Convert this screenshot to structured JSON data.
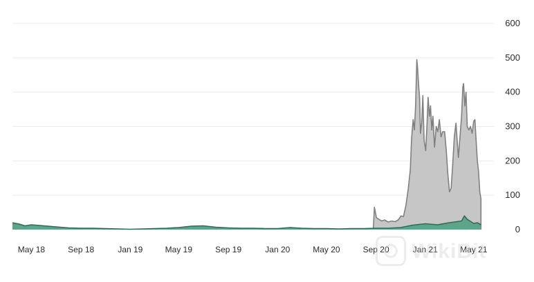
{
  "chart_data": {
    "type": "area",
    "x_ticks": [
      "May 18",
      "Sep 18",
      "Jan 19",
      "May 19",
      "Sep 19",
      "Jan 20",
      "May 20",
      "Sep 20",
      "Jan 21",
      "May 21"
    ],
    "x_tick_dates": [
      "2018-05-01",
      "2018-09-01",
      "2019-01-01",
      "2019-05-01",
      "2019-09-01",
      "2020-01-01",
      "2020-05-01",
      "2020-09-01",
      "2021-01-01",
      "2021-05-01"
    ],
    "x_range": [
      "2018-03-15",
      "2021-06-20"
    ],
    "yticks": [
      0,
      100,
      200,
      300,
      400,
      500,
      600
    ],
    "ylim": [
      0,
      600
    ],
    "y_axis_side": "right",
    "grid": true,
    "series": [
      {
        "color": "#808080",
        "fill": "#c6c6c6",
        "points": [
          [
            "2020-08-25",
            0
          ],
          [
            "2020-08-28",
            65
          ],
          [
            "2020-09-02",
            35
          ],
          [
            "2020-09-08",
            30
          ],
          [
            "2020-09-15",
            25
          ],
          [
            "2020-09-22",
            28
          ],
          [
            "2020-10-01",
            22
          ],
          [
            "2020-10-10",
            25
          ],
          [
            "2020-10-18",
            23
          ],
          [
            "2020-10-26",
            28
          ],
          [
            "2020-11-02",
            40
          ],
          [
            "2020-11-08",
            38
          ],
          [
            "2020-11-14",
            70
          ],
          [
            "2020-11-20",
            120
          ],
          [
            "2020-11-25",
            175
          ],
          [
            "2020-11-28",
            265
          ],
          [
            "2020-12-02",
            320
          ],
          [
            "2020-12-05",
            290
          ],
          [
            "2020-12-08",
            360
          ],
          [
            "2020-12-11",
            495
          ],
          [
            "2020-12-13",
            470
          ],
          [
            "2020-12-15",
            430
          ],
          [
            "2020-12-18",
            380
          ],
          [
            "2020-12-20",
            280
          ],
          [
            "2020-12-23",
            310
          ],
          [
            "2020-12-26",
            390
          ],
          [
            "2020-12-29",
            260
          ],
          [
            "2021-01-02",
            230
          ],
          [
            "2021-01-05",
            300
          ],
          [
            "2021-01-08",
            385
          ],
          [
            "2021-01-11",
            330
          ],
          [
            "2021-01-14",
            360
          ],
          [
            "2021-01-17",
            290
          ],
          [
            "2021-01-20",
            330
          ],
          [
            "2021-01-24",
            240
          ],
          [
            "2021-01-28",
            300
          ],
          [
            "2021-02-01",
            285
          ],
          [
            "2021-02-05",
            320
          ],
          [
            "2021-02-09",
            270
          ],
          [
            "2021-02-13",
            285
          ],
          [
            "2021-02-18",
            285
          ],
          [
            "2021-02-22",
            230
          ],
          [
            "2021-02-26",
            160
          ],
          [
            "2021-03-02",
            110
          ],
          [
            "2021-03-06",
            120
          ],
          [
            "2021-03-10",
            190
          ],
          [
            "2021-03-14",
            270
          ],
          [
            "2021-03-18",
            310
          ],
          [
            "2021-03-21",
            260
          ],
          [
            "2021-03-24",
            210
          ],
          [
            "2021-03-28",
            270
          ],
          [
            "2021-04-01",
            330
          ],
          [
            "2021-04-04",
            415
          ],
          [
            "2021-04-06",
            425
          ],
          [
            "2021-04-09",
            360
          ],
          [
            "2021-04-12",
            400
          ],
          [
            "2021-04-15",
            300
          ],
          [
            "2021-04-19",
            290
          ],
          [
            "2021-04-23",
            300
          ],
          [
            "2021-04-27",
            280
          ],
          [
            "2021-05-01",
            315
          ],
          [
            "2021-05-04",
            320
          ],
          [
            "2021-05-07",
            260
          ],
          [
            "2021-05-10",
            200
          ],
          [
            "2021-05-13",
            170
          ],
          [
            "2021-05-16",
            110
          ],
          [
            "2021-05-19",
            90
          ],
          [
            "2021-05-19",
            0
          ]
        ]
      },
      {
        "color": "#2f6b55",
        "fill": "#5fa48a",
        "points": [
          [
            "2018-03-15",
            20
          ],
          [
            "2018-04-01",
            16
          ],
          [
            "2018-04-15",
            11
          ],
          [
            "2018-05-01",
            14
          ],
          [
            "2018-06-01",
            11
          ],
          [
            "2018-07-01",
            8
          ],
          [
            "2018-08-01",
            5
          ],
          [
            "2018-09-01",
            4
          ],
          [
            "2018-10-01",
            4
          ],
          [
            "2018-11-01",
            3
          ],
          [
            "2018-12-01",
            2
          ],
          [
            "2019-01-01",
            1
          ],
          [
            "2019-02-01",
            2
          ],
          [
            "2019-03-01",
            3
          ],
          [
            "2019-04-01",
            4
          ],
          [
            "2019-05-01",
            6
          ],
          [
            "2019-06-01",
            10
          ],
          [
            "2019-07-01",
            11
          ],
          [
            "2019-08-01",
            7
          ],
          [
            "2019-09-01",
            5
          ],
          [
            "2019-10-01",
            4
          ],
          [
            "2019-11-01",
            4
          ],
          [
            "2019-12-01",
            3
          ],
          [
            "2020-01-01",
            3
          ],
          [
            "2020-02-01",
            6
          ],
          [
            "2020-03-01",
            4
          ],
          [
            "2020-04-01",
            3
          ],
          [
            "2020-05-01",
            3
          ],
          [
            "2020-06-01",
            2
          ],
          [
            "2020-07-01",
            3
          ],
          [
            "2020-08-01",
            3
          ],
          [
            "2020-09-01",
            4
          ],
          [
            "2020-10-01",
            4
          ],
          [
            "2020-11-01",
            6
          ],
          [
            "2020-12-01",
            13
          ],
          [
            "2021-01-01",
            17
          ],
          [
            "2021-02-01",
            14
          ],
          [
            "2021-03-01",
            20
          ],
          [
            "2021-04-01",
            25
          ],
          [
            "2021-04-08",
            40
          ],
          [
            "2021-04-15",
            30
          ],
          [
            "2021-05-01",
            18
          ],
          [
            "2021-05-10",
            20
          ],
          [
            "2021-05-19",
            14
          ]
        ]
      }
    ]
  },
  "watermark": {
    "text": "WikiBit"
  }
}
